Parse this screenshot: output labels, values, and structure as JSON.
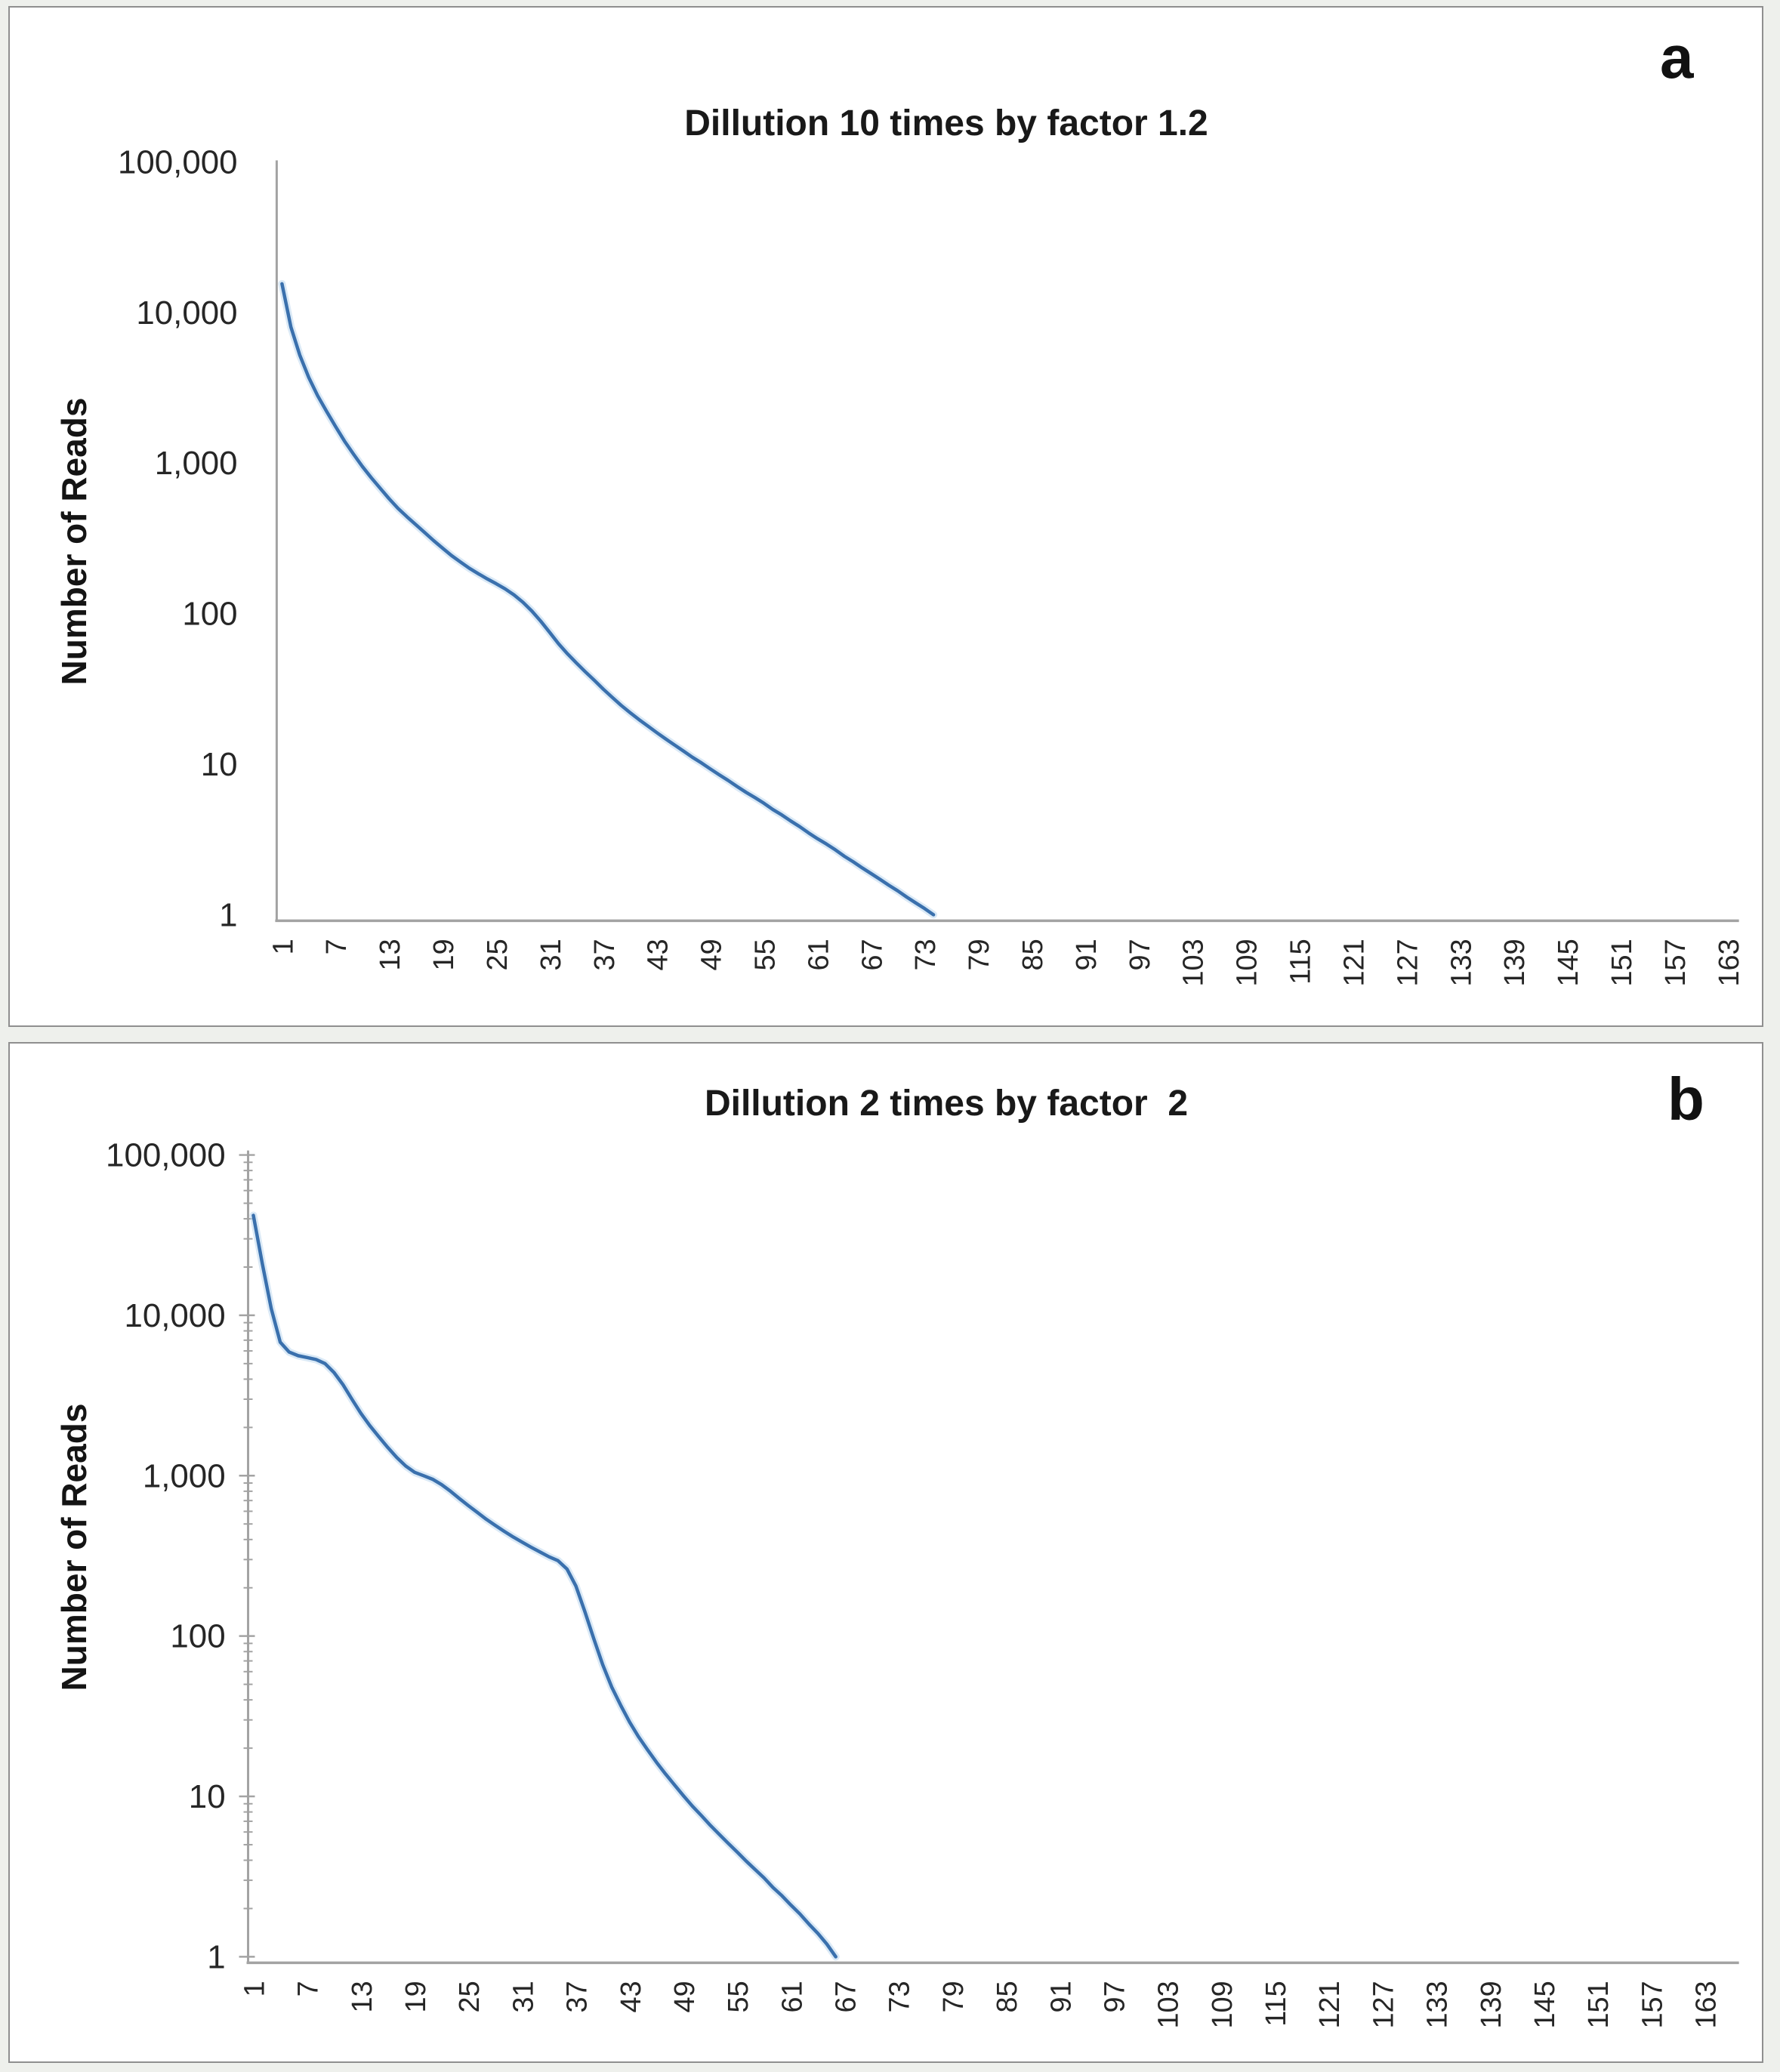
{
  "figure": {
    "background_color": "#eef0ec",
    "panel_border_color": "#8f8f8f",
    "line_color": "#3a70ad",
    "line_halo_color": "#bcd7ee",
    "axis_color": "#a3a3a3",
    "tick_text_color": "#262626"
  },
  "panels": [
    {
      "id": "a",
      "letter": "a",
      "title": "Dillution 10 times by factor 1.2",
      "y_axis_title": "Number of Reads"
    },
    {
      "id": "b",
      "letter": "b",
      "title": "Dillution 2 times by factor  2",
      "y_axis_title": "Number of Reads"
    }
  ],
  "chart_data": [
    {
      "type": "line",
      "panel": "a",
      "title": "Dillution 10 times by factor 1.2",
      "xlabel": "",
      "ylabel": "Number of Reads",
      "log_y": true,
      "ylim": [
        1,
        100000
      ],
      "y_tick_labels": [
        "100,000",
        "10,000",
        "1,000",
        "100",
        "10",
        "1"
      ],
      "y_tick_values": [
        100000,
        10000,
        1000,
        100,
        10,
        1
      ],
      "x_tick_labels": [
        1,
        7,
        13,
        19,
        25,
        31,
        37,
        43,
        49,
        55,
        61,
        67,
        73,
        79,
        85,
        91,
        97,
        103,
        109,
        115,
        121,
        127,
        133,
        139,
        145,
        151,
        157,
        163
      ],
      "x_range_shown": [
        1,
        163
      ],
      "x_start": 1,
      "x_step": 1,
      "legend": "none",
      "grid": false,
      "values": [
        15500,
        8000,
        5200,
        3700,
        2800,
        2200,
        1750,
        1400,
        1150,
        950,
        800,
        680,
        580,
        500,
        440,
        390,
        345,
        305,
        272,
        243,
        220,
        200,
        184,
        170,
        158,
        146,
        133,
        119,
        104,
        89,
        75,
        63,
        54,
        47,
        41,
        36,
        31.5,
        27.8,
        24.6,
        22,
        19.8,
        17.9,
        16.2,
        14.7,
        13.4,
        12.2,
        11.1,
        10.2,
        9.3,
        8.5,
        7.8,
        7.1,
        6.5,
        6.0,
        5.5,
        5.0,
        4.6,
        4.2,
        3.85,
        3.5,
        3.2,
        2.95,
        2.7,
        2.45,
        2.25,
        2.05,
        1.88,
        1.72,
        1.57,
        1.44,
        1.31,
        1.2,
        1.1,
        1.0
      ]
    },
    {
      "type": "line",
      "panel": "b",
      "title": "Dillution 2 times by factor  2",
      "xlabel": "",
      "ylabel": "Number of Reads",
      "log_y": true,
      "ylim": [
        1,
        100000
      ],
      "y_tick_labels": [
        "100,000",
        "10,000",
        "1,000",
        "100",
        "10",
        "1"
      ],
      "y_tick_values": [
        100000,
        10000,
        1000,
        100,
        10,
        1
      ],
      "y_minor_log_ticks": true,
      "x_tick_labels": [
        1,
        7,
        13,
        19,
        25,
        31,
        37,
        43,
        49,
        55,
        61,
        67,
        73,
        79,
        85,
        91,
        97,
        103,
        109,
        115,
        121,
        127,
        133,
        139,
        145,
        151,
        157,
        163
      ],
      "x_range_shown": [
        1,
        163
      ],
      "x_start": 1,
      "x_step": 1,
      "legend": "none",
      "grid": false,
      "values": [
        42000,
        21000,
        11000,
        6800,
        5900,
        5600,
        5450,
        5300,
        5000,
        4400,
        3700,
        3000,
        2450,
        2050,
        1750,
        1500,
        1300,
        1150,
        1050,
        1000,
        950,
        880,
        800,
        720,
        650,
        590,
        535,
        490,
        450,
        415,
        385,
        358,
        334,
        312,
        295,
        262,
        205,
        142,
        96,
        66,
        48,
        37,
        29,
        23.5,
        19.5,
        16.3,
        13.8,
        11.8,
        10.1,
        8.7,
        7.6,
        6.6,
        5.8,
        5.1,
        4.5,
        3.95,
        3.5,
        3.1,
        2.7,
        2.4,
        2.1,
        1.85,
        1.6,
        1.4,
        1.2,
        1.0
      ]
    }
  ]
}
